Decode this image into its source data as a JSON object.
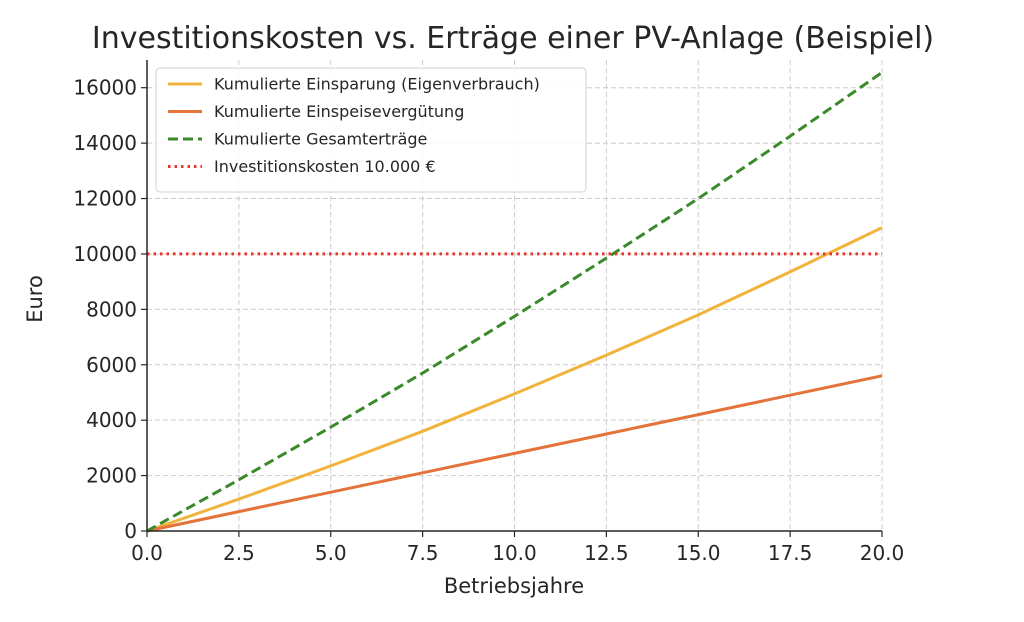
{
  "chart_data": {
    "type": "line",
    "title": "Investitionskosten vs. Erträge einer PV-Anlage (Beispiel)",
    "xlabel": "Betriebsjahre",
    "ylabel": "Euro",
    "xlim": [
      0,
      20
    ],
    "ylim": [
      0,
      17000
    ],
    "xticks": [
      "0.0",
      "2.5",
      "5.0",
      "7.5",
      "10.0",
      "12.5",
      "15.0",
      "17.5",
      "20.0"
    ],
    "yticks": [
      "0",
      "2000",
      "4000",
      "6000",
      "8000",
      "10000",
      "12000",
      "14000",
      "16000"
    ],
    "grid": true,
    "legend_position": "top-left",
    "series": [
      {
        "name": "Kumulierte Einsparung (Eigenverbrauch)",
        "color": "#f2b33d",
        "style": "solid",
        "x": [
          0,
          2.5,
          5,
          7.5,
          10,
          12.5,
          15,
          17.5,
          20
        ],
        "values": [
          0,
          1150,
          2350,
          3600,
          4950,
          6350,
          7800,
          9350,
          10950
        ]
      },
      {
        "name": "Kumulierte Einspeisevergütung",
        "color": "#e3733a",
        "style": "solid",
        "x": [
          0,
          2.5,
          5,
          7.5,
          10,
          12.5,
          15,
          17.5,
          20
        ],
        "values": [
          0,
          700,
          1400,
          2100,
          2800,
          3500,
          4200,
          4900,
          5600
        ]
      },
      {
        "name": "Kumulierte Gesamterträge",
        "color": "#3a8a2a",
        "style": "dashed",
        "x": [
          0,
          2.5,
          5,
          7.5,
          10,
          12.5,
          15,
          17.5,
          20
        ],
        "values": [
          0,
          1850,
          3750,
          5700,
          7750,
          9850,
          12000,
          14250,
          16550
        ]
      },
      {
        "name": "Investitionskosten 10.000 €",
        "color": "#e8342a",
        "style": "dotted",
        "x": [
          0,
          20
        ],
        "values": [
          10000,
          10000
        ]
      }
    ]
  }
}
